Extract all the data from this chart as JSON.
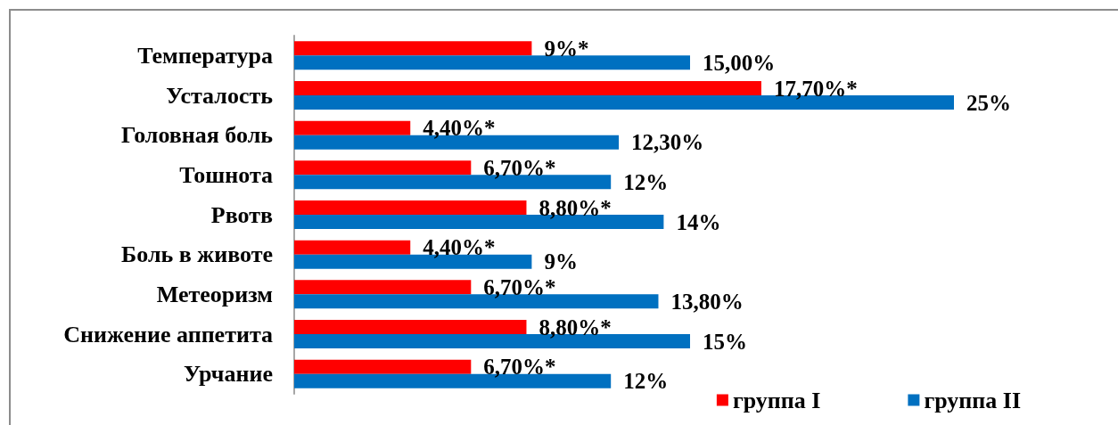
{
  "chart_data": {
    "type": "bar",
    "orientation": "horizontal",
    "categories": [
      "Температура",
      "Усталость",
      "Головная боль",
      "Тошнота",
      "Рвотв",
      "Боль в животе",
      "Метеоризм",
      "Снижение аппетита",
      "Урчание"
    ],
    "series": [
      {
        "name": "группа I",
        "color": "#ff0000",
        "values": [
          9,
          17.7,
          4.4,
          6.7,
          8.8,
          4.4,
          6.7,
          8.8,
          6.7
        ],
        "value_labels": [
          "9%*",
          "17,70%*",
          "4,40%*",
          "6,70%*",
          "8,80%*",
          "4,40%*",
          "6,70%*",
          "8,80%*",
          "6,70%*"
        ]
      },
      {
        "name": "группа II",
        "color": "#0070c0",
        "values": [
          15,
          25,
          12.3,
          12,
          14,
          9,
          13.8,
          15,
          12
        ],
        "value_labels": [
          "15,00%",
          "25%",
          "12,30%",
          "12%",
          "14%",
          "9%",
          "13,80%",
          "15%",
          "12%"
        ]
      }
    ],
    "legend": "bottom right",
    "tick_labels": "y"
  }
}
